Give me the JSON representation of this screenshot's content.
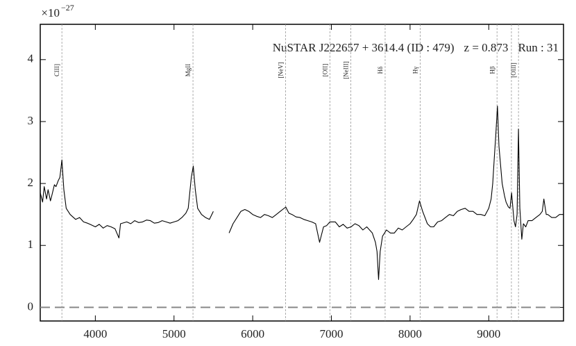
{
  "chart_data": {
    "type": "line",
    "y_scale": {
      "base": "×10",
      "exponent": "−27"
    },
    "annotations": [
      "NuSTAR J222657 + 3614.4 (ID : 479)",
      "z = 0.873",
      "Run : 31"
    ],
    "xlim": [
      3300,
      9950
    ],
    "ylim": [
      -0.22,
      4.57
    ],
    "xticks": [
      4000,
      5000,
      6000,
      7000,
      8000,
      9000
    ],
    "yticks": [
      0,
      1,
      2,
      3,
      4
    ],
    "color": "#000000",
    "hline": 0,
    "lines": [
      {
        "x": 3575,
        "label": "CIII]"
      },
      {
        "x": 5241,
        "label": "MgII"
      },
      {
        "x": 6417,
        "label": "[NeV]"
      },
      {
        "x": 6981,
        "label": "[OII]"
      },
      {
        "x": 7247,
        "label": "[NeIII]"
      },
      {
        "x": 7683,
        "label": "Hδ"
      },
      {
        "x": 8129,
        "label": "Hγ"
      },
      {
        "x": 9105,
        "label": "Hβ"
      },
      {
        "x": 9288,
        "label": null
      },
      {
        "x": 9378,
        "label": "[OIII]"
      }
    ],
    "x": [
      3300,
      3330,
      3350,
      3380,
      3400,
      3430,
      3450,
      3480,
      3500,
      3530,
      3550,
      3575,
      3600,
      3630,
      3680,
      3750,
      3800,
      3850,
      3900,
      3950,
      4000,
      4050,
      4100,
      4150,
      4200,
      4250,
      4300,
      4320,
      4400,
      4450,
      4500,
      4550,
      4600,
      4650,
      4700,
      4750,
      4800,
      4850,
      4900,
      4950,
      5000,
      5050,
      5100,
      5150,
      5180,
      5220,
      5245,
      5270,
      5300,
      5350,
      5400,
      5450,
      5500,
      5550,
      5700,
      5750,
      5800,
      5850,
      5900,
      5950,
      6000,
      6050,
      6100,
      6150,
      6200,
      6250,
      6300,
      6350,
      6420,
      6460,
      6500,
      6550,
      6600,
      6650,
      6700,
      6750,
      6800,
      6850,
      6900,
      6940,
      6980,
      7050,
      7100,
      7150,
      7200,
      7250,
      7300,
      7350,
      7400,
      7450,
      7520,
      7560,
      7580,
      7600,
      7620,
      7650,
      7700,
      7750,
      7800,
      7850,
      7900,
      7950,
      8000,
      8040,
      8080,
      8120,
      8160,
      8220,
      8260,
      8300,
      8350,
      8400,
      8450,
      8500,
      8550,
      8600,
      8650,
      8700,
      8750,
      8800,
      8850,
      8900,
      8950,
      9000,
      9030,
      9050,
      9070,
      9090,
      9110,
      9130,
      9150,
      9170,
      9200,
      9220,
      9250,
      9270,
      9290,
      9320,
      9340,
      9360,
      9378,
      9395,
      9420,
      9440,
      9470,
      9500,
      9550,
      9600,
      9650,
      9680,
      9700,
      9730,
      9750,
      9800,
      9850,
      9900,
      9950
    ],
    "values": [
      1.85,
      1.7,
      1.95,
      1.75,
      1.9,
      1.72,
      1.82,
      1.98,
      1.95,
      2.05,
      2.1,
      2.38,
      1.9,
      1.6,
      1.5,
      1.42,
      1.45,
      1.38,
      1.36,
      1.33,
      1.3,
      1.34,
      1.28,
      1.32,
      1.3,
      1.27,
      1.12,
      1.35,
      1.38,
      1.35,
      1.4,
      1.37,
      1.38,
      1.41,
      1.4,
      1.36,
      1.37,
      1.4,
      1.38,
      1.36,
      1.38,
      1.4,
      1.45,
      1.52,
      1.6,
      2.1,
      2.28,
      1.9,
      1.6,
      1.5,
      1.45,
      1.42,
      1.55,
      null,
      1.2,
      1.35,
      1.45,
      1.55,
      1.58,
      1.55,
      1.5,
      1.47,
      1.45,
      1.5,
      1.48,
      1.45,
      1.5,
      1.55,
      1.62,
      1.52,
      1.5,
      1.46,
      1.45,
      1.42,
      1.4,
      1.38,
      1.35,
      1.05,
      1.3,
      1.32,
      1.38,
      1.38,
      1.3,
      1.34,
      1.28,
      1.3,
      1.35,
      1.32,
      1.25,
      1.3,
      1.2,
      1.05,
      0.9,
      0.45,
      0.9,
      1.15,
      1.25,
      1.2,
      1.2,
      1.28,
      1.25,
      1.3,
      1.35,
      1.42,
      1.5,
      1.72,
      1.55,
      1.35,
      1.3,
      1.3,
      1.38,
      1.4,
      1.45,
      1.5,
      1.48,
      1.55,
      1.58,
      1.6,
      1.55,
      1.55,
      1.5,
      1.5,
      1.48,
      1.6,
      1.75,
      2.0,
      2.4,
      2.8,
      3.25,
      2.6,
      2.3,
      2.0,
      1.8,
      1.7,
      1.62,
      1.6,
      1.85,
      1.4,
      1.3,
      1.5,
      2.88,
      1.6,
      1.1,
      1.35,
      1.3,
      1.4,
      1.4,
      1.45,
      1.5,
      1.55,
      1.75,
      1.5,
      1.5,
      1.45,
      1.45,
      1.5,
      1.5
    ]
  }
}
